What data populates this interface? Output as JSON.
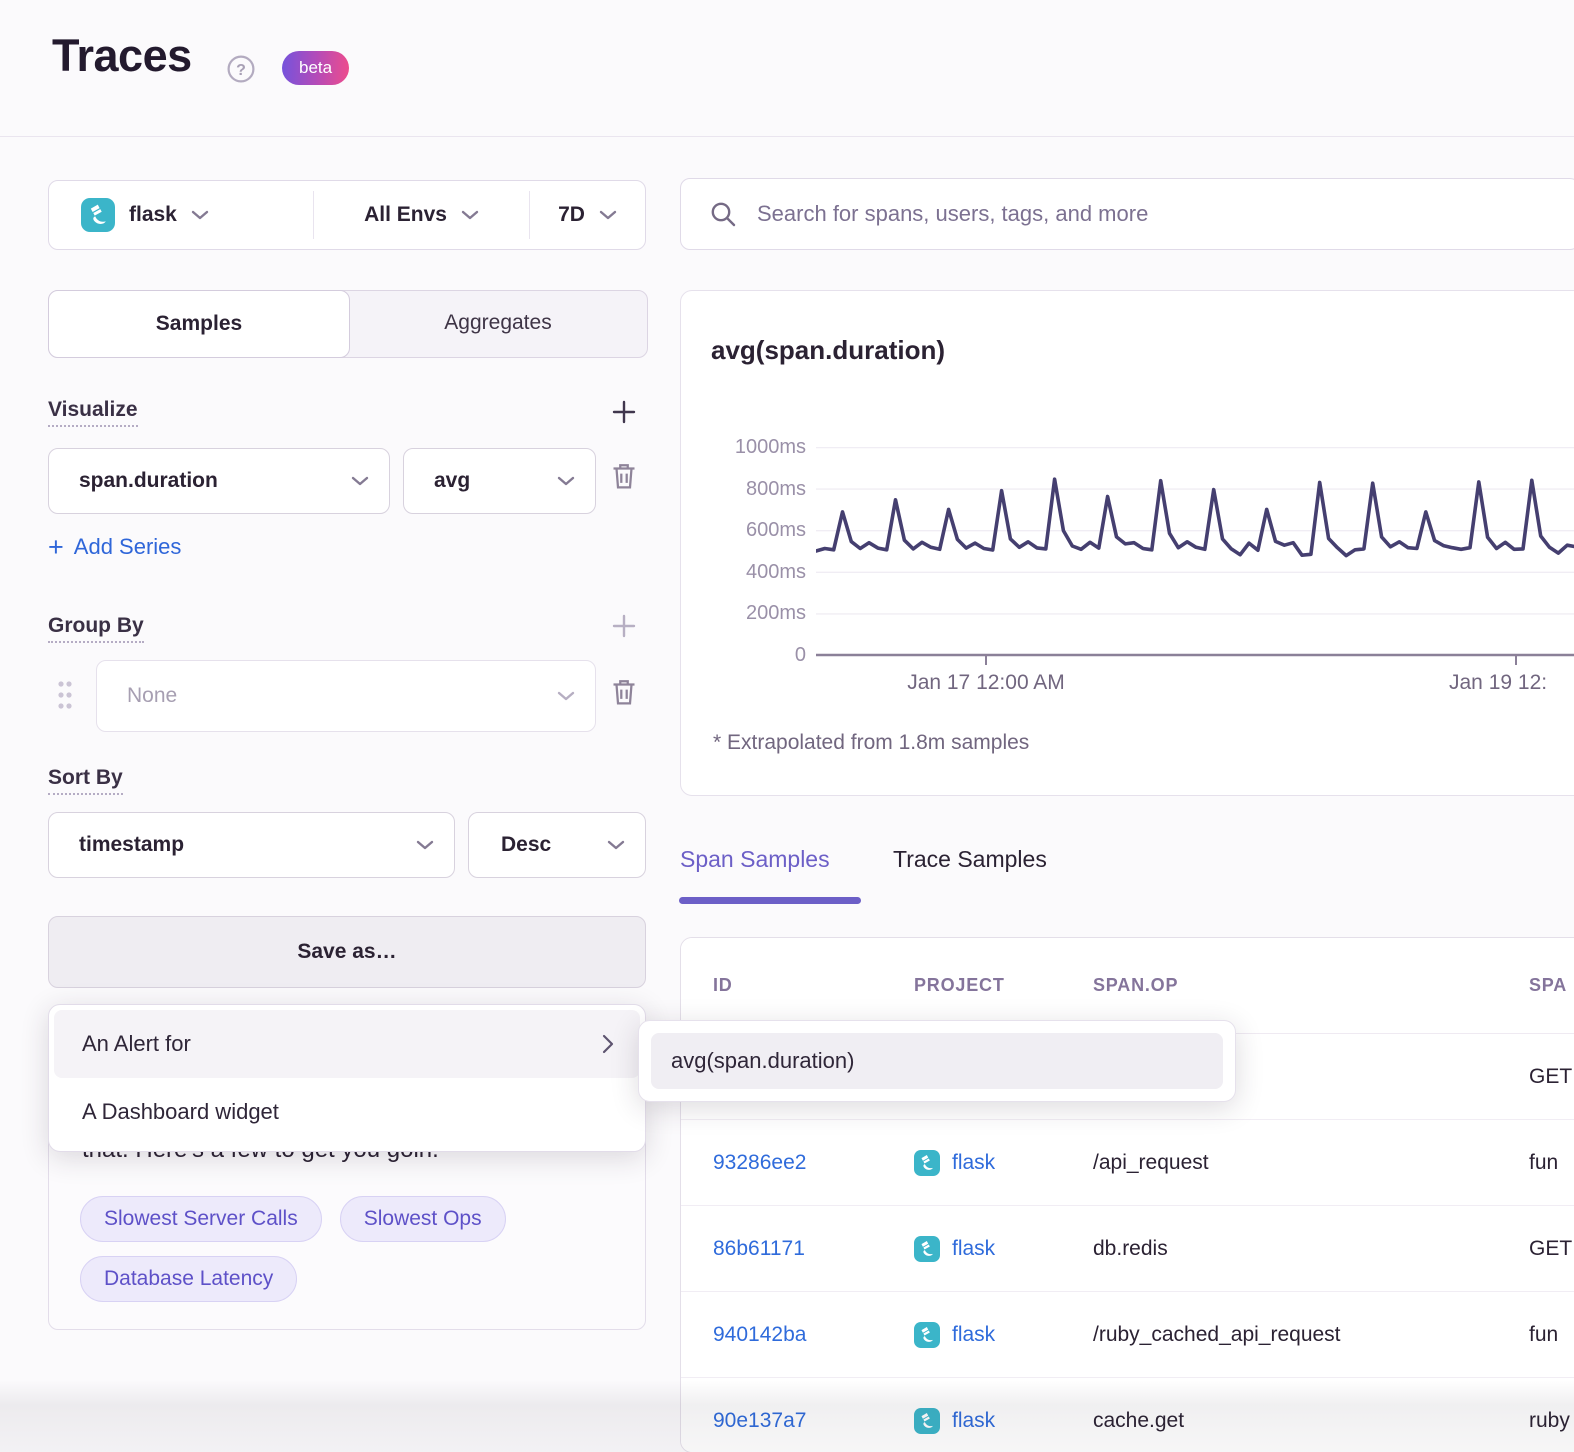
{
  "header": {
    "title": "Traces",
    "beta_label": "beta"
  },
  "filter_bar": {
    "project_label": "flask",
    "environment_label": "All Envs",
    "period_label": "7D"
  },
  "mode_tabs": {
    "samples": "Samples",
    "aggregates": "Aggregates",
    "active": "Samples"
  },
  "visualize": {
    "heading": "Visualize",
    "field": "span.duration",
    "aggregate": "avg",
    "add_series_label": "Add Series"
  },
  "group_by": {
    "heading": "Group By",
    "placeholder": "None"
  },
  "sort_by": {
    "heading": "Sort By",
    "field": "timestamp",
    "direction": "Desc"
  },
  "save_as": {
    "button_label": "Save as…",
    "menu": [
      {
        "label": "An Alert for"
      },
      {
        "label": "A Dashboard widget"
      }
    ],
    "submenu": [
      {
        "label": "avg(span.duration)"
      }
    ]
  },
  "suggested_queries": {
    "visible_text": "that. Here's a few to get you goin.",
    "chips": [
      "Slowest Server Calls",
      "Slowest Ops",
      "Database Latency"
    ]
  },
  "search": {
    "placeholder": "Search for spans, users, tags, and more"
  },
  "chart_data": {
    "type": "line",
    "title": "avg(span.duration)",
    "unit": "ms",
    "ylim": [
      0,
      1000
    ],
    "y_tick_labels": [
      "1000ms",
      "800ms",
      "600ms",
      "400ms",
      "200ms",
      "0"
    ],
    "x_tick_labels": [
      "Jan 17 12:00 AM",
      "Jan 19 12:"
    ],
    "note": "* Extrapolated from 1.8m samples",
    "grid": "horizontal",
    "legend": "none",
    "line_color": "#453F70",
    "series": [
      {
        "name": "avg(span.duration)",
        "values": [
          500,
          512,
          506,
          688,
          545,
          512,
          540,
          514,
          506,
          746,
          552,
          510,
          542,
          518,
          508,
          700,
          556,
          514,
          538,
          512,
          505,
          790,
          558,
          518,
          544,
          515,
          510,
          845,
          598,
          524,
          508,
          542,
          514,
          762,
          568,
          534,
          540,
          512,
          506,
          838,
          585,
          516,
          544,
          518,
          508,
          795,
          558,
          510,
          482,
          538,
          504,
          700,
          546,
          528,
          540,
          480,
          484,
          830,
          560,
          516,
          478,
          506,
          510,
          826,
          568,
          520,
          544,
          516,
          512,
          688,
          550,
          526,
          516,
          508,
          516,
          832,
          566,
          512,
          542,
          508,
          510,
          840,
          572,
          518,
          490,
          528,
          520
        ]
      }
    ]
  },
  "sample_tabs": {
    "span_samples": "Span Samples",
    "trace_samples": "Trace Samples",
    "active": "Span Samples"
  },
  "table": {
    "columns": [
      "ID",
      "PROJECT",
      "SPAN.OP",
      "SPA"
    ],
    "rows": [
      {
        "id": "",
        "project": "",
        "span_op": "",
        "span_description": "GET"
      },
      {
        "id": "93286ee2",
        "project": "flask",
        "span_op": "/api_request",
        "span_description": "fun"
      },
      {
        "id": "86b61171",
        "project": "flask",
        "span_op": "db.redis",
        "span_description": "GET"
      },
      {
        "id": "940142ba",
        "project": "flask",
        "span_op": "/ruby_cached_api_request",
        "span_description": "fun"
      },
      {
        "id": "90e137a7",
        "project": "flask",
        "span_op": "cache.get",
        "span_description": "ruby"
      }
    ]
  },
  "colors": {
    "accent_purple": "#6C5FC7",
    "link_blue": "#2F6BDB",
    "project_teal": "#3BB5C9",
    "chart_line": "#453F70",
    "beta_gradient_start": "#7553DC",
    "beta_gradient_end": "#EE4C8C"
  }
}
